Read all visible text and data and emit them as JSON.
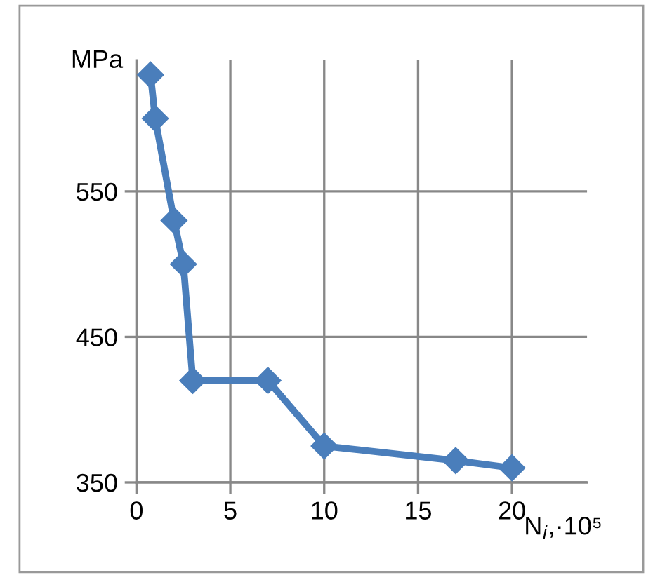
{
  "chart_data": {
    "type": "line",
    "ylabel": "MPa",
    "xlabel": "N$_{i}$,·10⁵",
    "x": [
      0.75,
      1,
      2,
      2.5,
      3,
      7,
      10,
      17,
      20
    ],
    "series": [
      {
        "color": "#4a7ebb",
        "values": [
          630,
          600,
          530,
          500,
          420,
          420,
          375,
          365,
          360
        ]
      }
    ],
    "xlim": [
      0,
      24
    ],
    "ylim": [
      350,
      640
    ],
    "xticks": [
      0,
      5,
      10,
      15,
      20
    ],
    "yticks": [
      350,
      450,
      550
    ],
    "grid": true,
    "marker": "diamond",
    "line_style": "solid"
  }
}
